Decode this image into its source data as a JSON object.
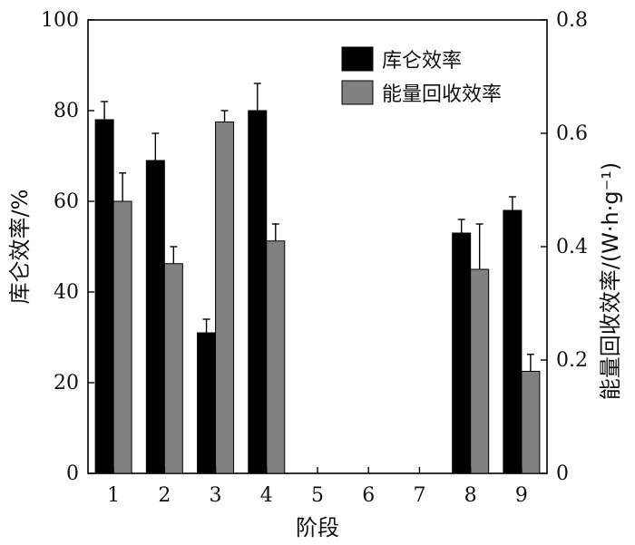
{
  "chart_data": {
    "type": "bar",
    "categories": [
      "1",
      "2",
      "3",
      "4",
      "5",
      "6",
      "7",
      "8",
      "9"
    ],
    "series": [
      {
        "name": "库仑效率",
        "axis": "left",
        "color": "#000000",
        "values": [
          78,
          69,
          31,
          80,
          null,
          null,
          null,
          53,
          58
        ],
        "errors": [
          4,
          6,
          3,
          6,
          null,
          null,
          null,
          3,
          3
        ]
      },
      {
        "name": "能量回收效率",
        "axis": "right",
        "color": "#808080",
        "values": [
          0.48,
          0.37,
          0.62,
          0.41,
          null,
          null,
          null,
          0.36,
          0.18
        ],
        "errors": [
          0.05,
          0.03,
          0.02,
          0.03,
          null,
          null,
          null,
          0.08,
          0.03
        ]
      }
    ],
    "xlabel": "阶段",
    "ylabel_left": "库仑效率/%",
    "ylabel_right": "能量回收效率/(W·h·g⁻¹)",
    "ylim_left": [
      0,
      100
    ],
    "ylim_right": [
      0,
      0.8
    ],
    "yticks_left": [
      "0",
      "20",
      "40",
      "60",
      "80",
      "100"
    ],
    "yticks_right": [
      "0",
      "0.2",
      "0.4",
      "0.6",
      "0.8"
    ],
    "grid": false,
    "legend_position": "top-right"
  }
}
